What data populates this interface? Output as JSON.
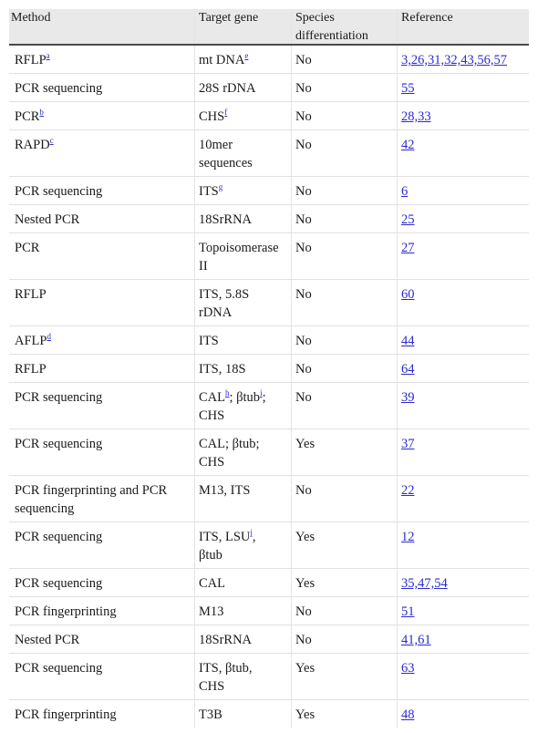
{
  "headers": {
    "method": "Method",
    "target": "Target gene",
    "species_line1": "Species",
    "species_line2": "differentiation",
    "reference": "Reference"
  },
  "rows": [
    {
      "method": "RFLP",
      "method_sup": "a",
      "target": "mt DNA",
      "target_sup": "e",
      "species": "No",
      "ref": "3,26,31,32,43,56,57"
    },
    {
      "method": "PCR sequencing",
      "target": "28S rDNA",
      "species": "No",
      "ref": "55"
    },
    {
      "method": "PCR",
      "method_sup": "b",
      "target": "CHS",
      "target_sup": "f",
      "species": "No",
      "ref": "28,33"
    },
    {
      "method": "RAPD",
      "method_sup": "c",
      "target_l1": "10mer",
      "target_l2": "sequences",
      "species": "No",
      "ref": "42"
    },
    {
      "method": "PCR sequencing",
      "target": "ITS",
      "target_sup": "g",
      "species": "No",
      "ref": "6"
    },
    {
      "method": "Nested PCR",
      "target": "18SrRNA",
      "species": "No",
      "ref": "25"
    },
    {
      "method": "PCR",
      "target_l1": "Topoisomerase",
      "target_l2": "II",
      "species": "No",
      "ref": "27"
    },
    {
      "method": "RFLP",
      "target_l1": "ITS, 5.8S",
      "target_l2": "rDNA",
      "species": "No",
      "ref": "60"
    },
    {
      "method": "AFLP",
      "method_sup": "d",
      "target": "ITS",
      "species": "No",
      "ref": "44"
    },
    {
      "method": "RFLP",
      "target": "ITS, 18S",
      "species": "No",
      "ref": "64"
    },
    {
      "method": "PCR sequencing",
      "t_a": "CAL",
      "t_a_sup": "h",
      "t_b": "; βtub",
      "t_b_sup": "i",
      "t_c": ";",
      "target_l2": "CHS",
      "species": "No",
      "ref": "39"
    },
    {
      "method": "PCR sequencing",
      "target_l1": "CAL; βtub;",
      "target_l2": "CHS",
      "species": "Yes",
      "ref": "37"
    },
    {
      "method_l1": "PCR fingerprinting and PCR",
      "method_l2": "sequencing",
      "target": "M13, ITS",
      "species": "No",
      "ref": "22"
    },
    {
      "method": "PCR sequencing",
      "t_a": "ITS, LSU",
      "t_a_sup": "j",
      "t_c": ",",
      "target_l2": "βtub",
      "species": "Yes",
      "ref": "12"
    },
    {
      "method": "PCR sequencing",
      "target": "CAL",
      "species": "Yes",
      "ref": "35,47,54"
    },
    {
      "method": "PCR fingerprinting",
      "target": "M13",
      "species": "No",
      "ref": "51"
    },
    {
      "method": "Nested PCR",
      "target": "18SrRNA",
      "species": "No",
      "ref": "41,61"
    },
    {
      "method": "PCR sequencing",
      "target_l1": "ITS, βtub,",
      "target_l2": "CHS",
      "species": "Yes",
      "ref": "63"
    },
    {
      "method": "PCR fingerprinting",
      "target": "T3B",
      "species": "Yes",
      "ref": "48"
    }
  ]
}
